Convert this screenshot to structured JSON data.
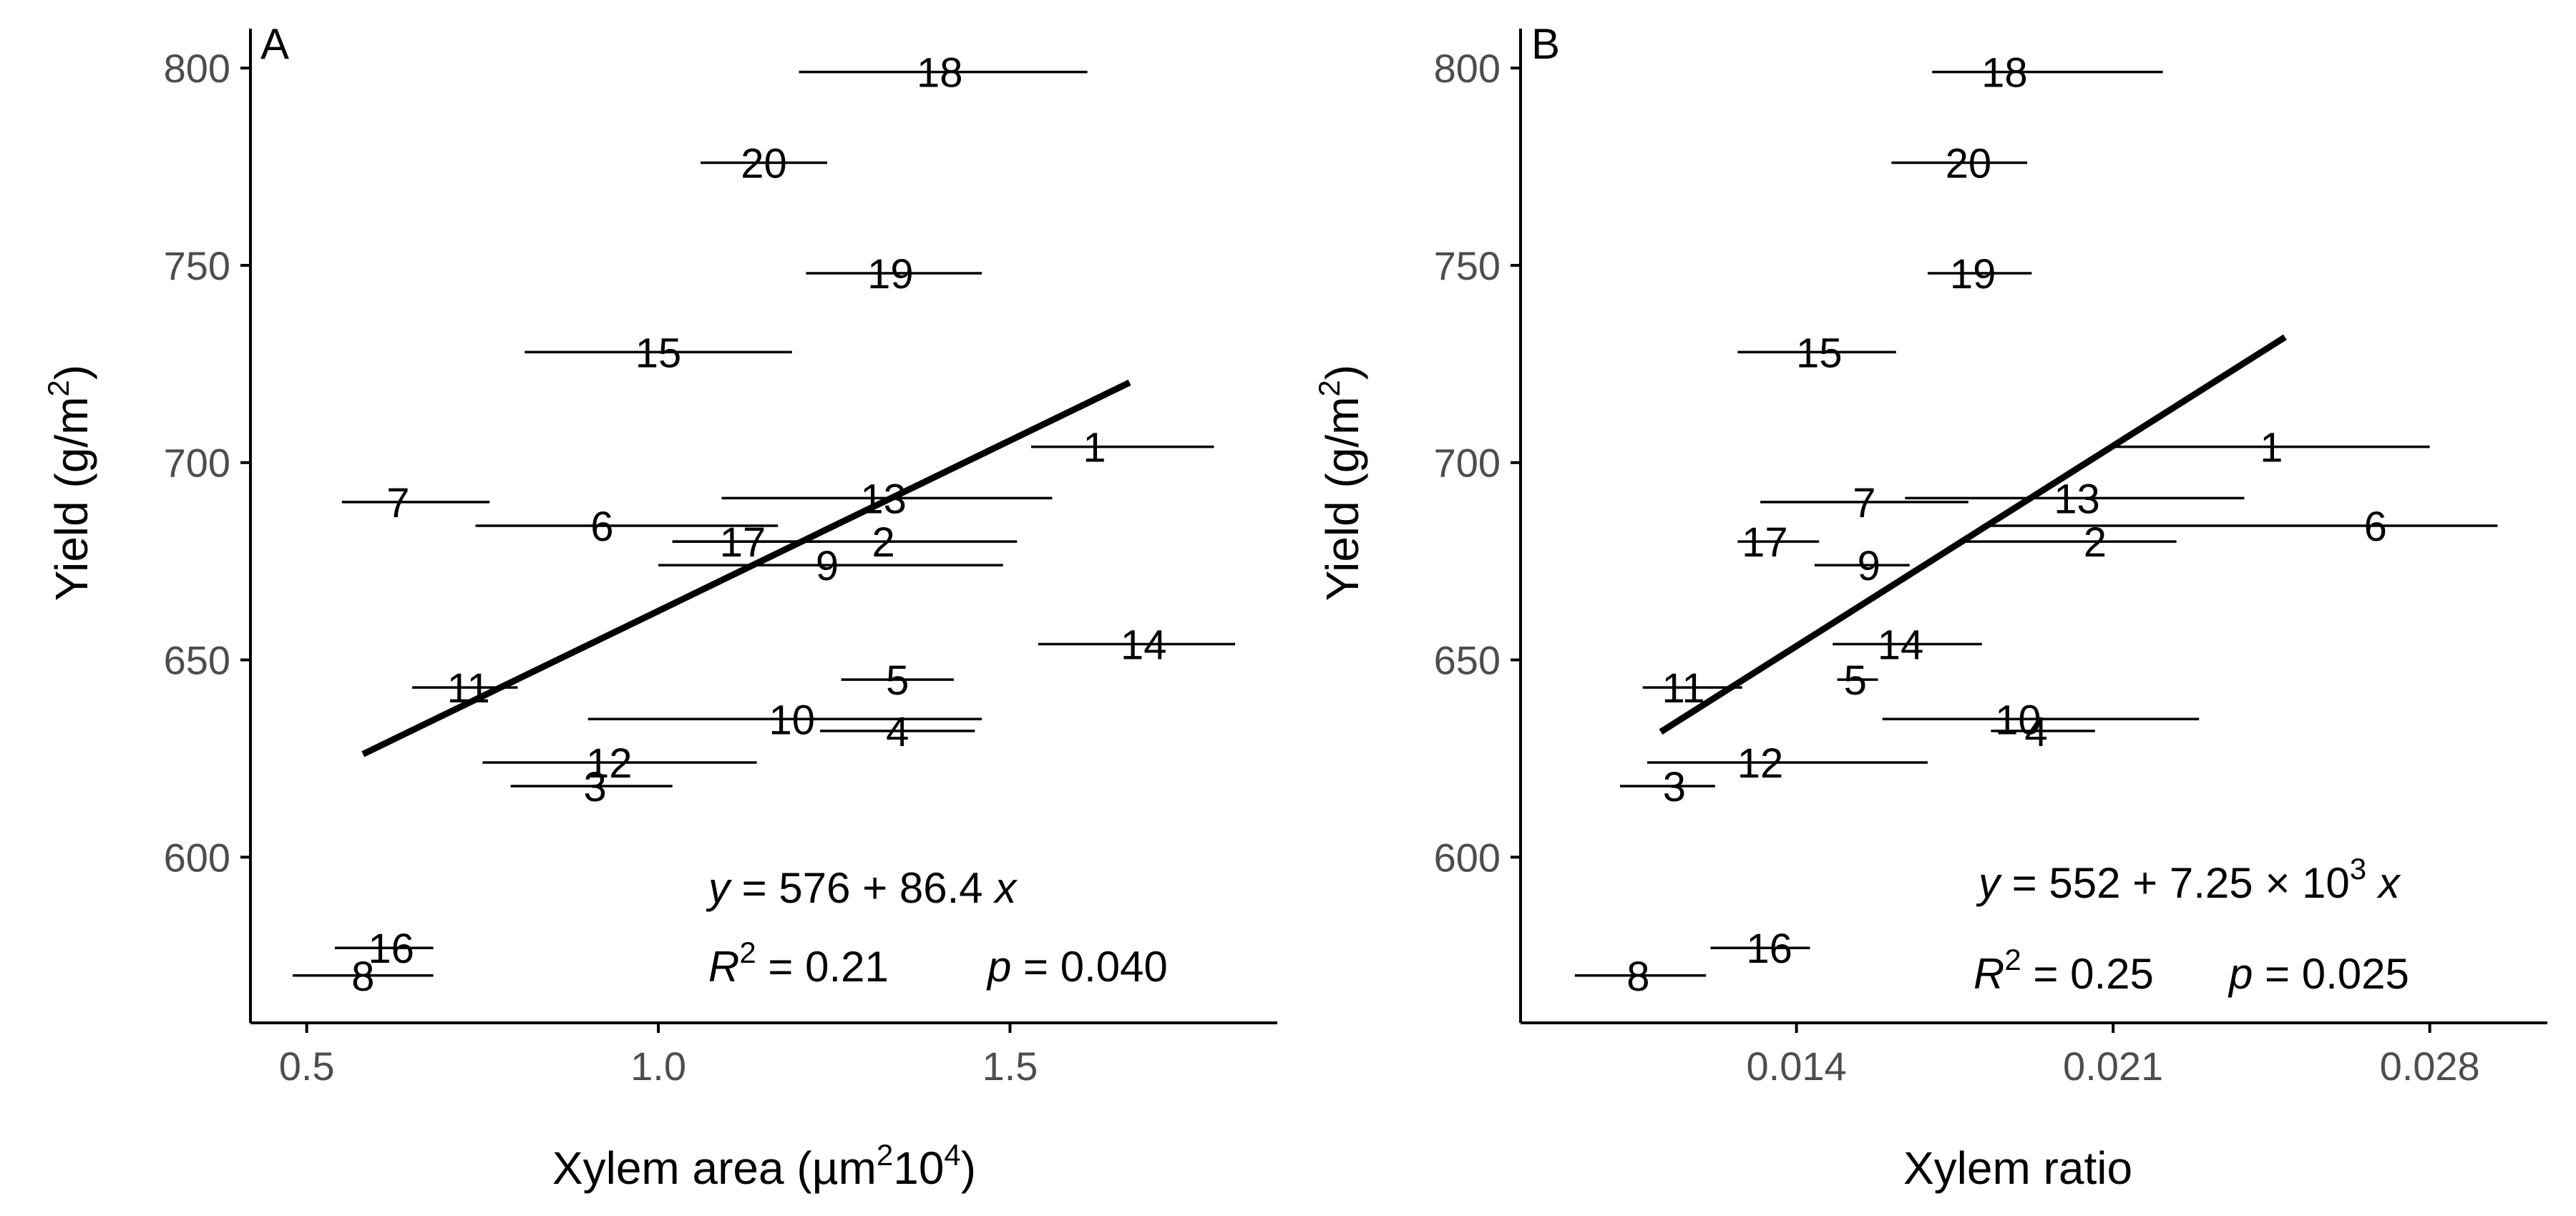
{
  "figure": {
    "panels": [
      {
        "tag": "A",
        "xlabel": "Xylem area (µm²10⁴)",
        "ylabel": "Yield (g/m²)",
        "equation": "y = 576 + 86.4 x",
        "r2": "R² = 0.21",
        "pvalue": "p = 0.040"
      },
      {
        "tag": "B",
        "xlabel": "Xylem ratio",
        "ylabel": "Yield (g/m²)",
        "equation": "y = 552 + 7.25 × 10³ x",
        "r2": "R² = 0.25",
        "pvalue": "p = 0.025"
      }
    ]
  },
  "chart_data": [
    {
      "type": "scatter",
      "panel": "A",
      "xlabel": "Xylem area (µm²10⁴)",
      "ylabel": "Yield (g/m²)",
      "xlim": [
        0.42,
        1.88
      ],
      "ylim": [
        558,
        810
      ],
      "xticks": [
        0.5,
        1.0,
        1.5
      ],
      "xtick_labels": [
        "0.5",
        "1.0",
        "1.5"
      ],
      "yticks": [
        600,
        650,
        700,
        750,
        800
      ],
      "ytick_labels": [
        "600",
        "650",
        "700",
        "750",
        "800"
      ],
      "grid": false,
      "points": [
        {
          "label": "1",
          "x": 1.62,
          "xmin": 1.53,
          "xmax": 1.79,
          "y": 704
        },
        {
          "label": "2",
          "x": 1.32,
          "xmin": 1.02,
          "xmax": 1.51,
          "y": 680
        },
        {
          "label": "3",
          "x": 0.91,
          "xmin": 0.79,
          "xmax": 1.02,
          "y": 618
        },
        {
          "label": "4",
          "x": 1.34,
          "xmin": 1.23,
          "xmax": 1.45,
          "y": 632
        },
        {
          "label": "5",
          "x": 1.34,
          "xmin": 1.26,
          "xmax": 1.42,
          "y": 645
        },
        {
          "label": "6",
          "x": 0.92,
          "xmin": 0.74,
          "xmax": 1.17,
          "y": 684
        },
        {
          "label": "7",
          "x": 0.63,
          "xmin": 0.55,
          "xmax": 0.76,
          "y": 690
        },
        {
          "label": "8",
          "x": 0.58,
          "xmin": 0.48,
          "xmax": 0.68,
          "y": 570
        },
        {
          "label": "9",
          "x": 1.24,
          "xmin": 1.0,
          "xmax": 1.49,
          "y": 674
        },
        {
          "label": "10",
          "x": 1.19,
          "xmin": 0.9,
          "xmax": 1.46,
          "y": 635
        },
        {
          "label": "11",
          "x": 0.73,
          "xmin": 0.65,
          "xmax": 0.8,
          "y": 643
        },
        {
          "label": "12",
          "x": 0.93,
          "xmin": 0.75,
          "xmax": 1.14,
          "y": 624
        },
        {
          "label": "13",
          "x": 1.32,
          "xmin": 1.09,
          "xmax": 1.56,
          "y": 691
        },
        {
          "label": "14",
          "x": 1.69,
          "xmin": 1.54,
          "xmax": 1.82,
          "y": 654
        },
        {
          "label": "15",
          "x": 1.0,
          "xmin": 0.81,
          "xmax": 1.19,
          "y": 728
        },
        {
          "label": "16",
          "x": 0.62,
          "xmin": 0.54,
          "xmax": 0.68,
          "y": 577
        },
        {
          "label": "17",
          "x": 1.12,
          "xmin": 1.02,
          "xmax": 1.23,
          "y": 680
        },
        {
          "label": "18",
          "x": 1.4,
          "xmin": 1.2,
          "xmax": 1.61,
          "y": 799
        },
        {
          "label": "19",
          "x": 1.33,
          "xmin": 1.21,
          "xmax": 1.46,
          "y": 748
        },
        {
          "label": "20",
          "x": 1.15,
          "xmin": 1.06,
          "xmax": 1.24,
          "y": 776
        }
      ],
      "fit": {
        "intercept": 576,
        "slope": 86.4,
        "x_range": [
          0.58,
          1.67
        ]
      },
      "equation": "y = 576 + 86.4 x",
      "r2": "R² = 0.21",
      "pvalue": "p = 0.040"
    },
    {
      "type": "scatter",
      "panel": "B",
      "xlabel": "Xylem ratio",
      "ylabel": "Yield (g/m²)",
      "xlim": [
        0.0079,
        0.0306
      ],
      "ylim": [
        558,
        810
      ],
      "xticks": [
        0.014,
        0.021,
        0.028
      ],
      "xtick_labels": [
        "0.014",
        "0.021",
        "0.028"
      ],
      "yticks": [
        600,
        650,
        700,
        750,
        800
      ],
      "ytick_labels": [
        "600",
        "650",
        "700",
        "750",
        "800"
      ],
      "grid": false,
      "points": [
        {
          "label": "1",
          "x": 0.0245,
          "xmin": 0.021,
          "xmax": 0.028,
          "y": 704
        },
        {
          "label": "2",
          "x": 0.0206,
          "xmin": 0.0177,
          "xmax": 0.0224,
          "y": 680
        },
        {
          "label": "3",
          "x": 0.0113,
          "xmin": 0.0101,
          "xmax": 0.0122,
          "y": 618
        },
        {
          "label": "4",
          "x": 0.0193,
          "xmin": 0.0183,
          "xmax": 0.0206,
          "y": 632
        },
        {
          "label": "5",
          "x": 0.0153,
          "xmin": 0.0149,
          "xmax": 0.0158,
          "y": 645
        },
        {
          "label": "6",
          "x": 0.0268,
          "xmin": 0.0181,
          "xmax": 0.0295,
          "y": 684
        },
        {
          "label": "7",
          "x": 0.0155,
          "xmin": 0.0132,
          "xmax": 0.0178,
          "y": 690
        },
        {
          "label": "8",
          "x": 0.0105,
          "xmin": 0.0091,
          "xmax": 0.012,
          "y": 570
        },
        {
          "label": "9",
          "x": 0.0156,
          "xmin": 0.0144,
          "xmax": 0.0165,
          "y": 674
        },
        {
          "label": "10",
          "x": 0.0189,
          "xmin": 0.0159,
          "xmax": 0.0229,
          "y": 635
        },
        {
          "label": "11",
          "x": 0.0115,
          "xmin": 0.0106,
          "xmax": 0.0128,
          "y": 643
        },
        {
          "label": "12",
          "x": 0.0132,
          "xmin": 0.0107,
          "xmax": 0.0169,
          "y": 624
        },
        {
          "label": "13",
          "x": 0.0202,
          "xmin": 0.0164,
          "xmax": 0.0239,
          "y": 691
        },
        {
          "label": "14",
          "x": 0.0163,
          "xmin": 0.0148,
          "xmax": 0.0181,
          "y": 654
        },
        {
          "label": "15",
          "x": 0.0145,
          "xmin": 0.0127,
          "xmax": 0.0162,
          "y": 728
        },
        {
          "label": "16",
          "x": 0.0134,
          "xmin": 0.0121,
          "xmax": 0.0143,
          "y": 577
        },
        {
          "label": "17",
          "x": 0.0133,
          "xmin": 0.0127,
          "xmax": 0.0145,
          "y": 680
        },
        {
          "label": "18",
          "x": 0.0186,
          "xmin": 0.017,
          "xmax": 0.0221,
          "y": 799
        },
        {
          "label": "19",
          "x": 0.0179,
          "xmin": 0.0169,
          "xmax": 0.0192,
          "y": 748
        },
        {
          "label": "20",
          "x": 0.0178,
          "xmin": 0.0161,
          "xmax": 0.0191,
          "y": 776
        }
      ],
      "fit": {
        "intercept": 552,
        "slope": 7250,
        "x_range": [
          0.011,
          0.0248
        ]
      },
      "equation": "y = 552 + 7.25 × 10³ x",
      "r2": "R² = 0.25",
      "pvalue": "p = 0.025"
    }
  ]
}
